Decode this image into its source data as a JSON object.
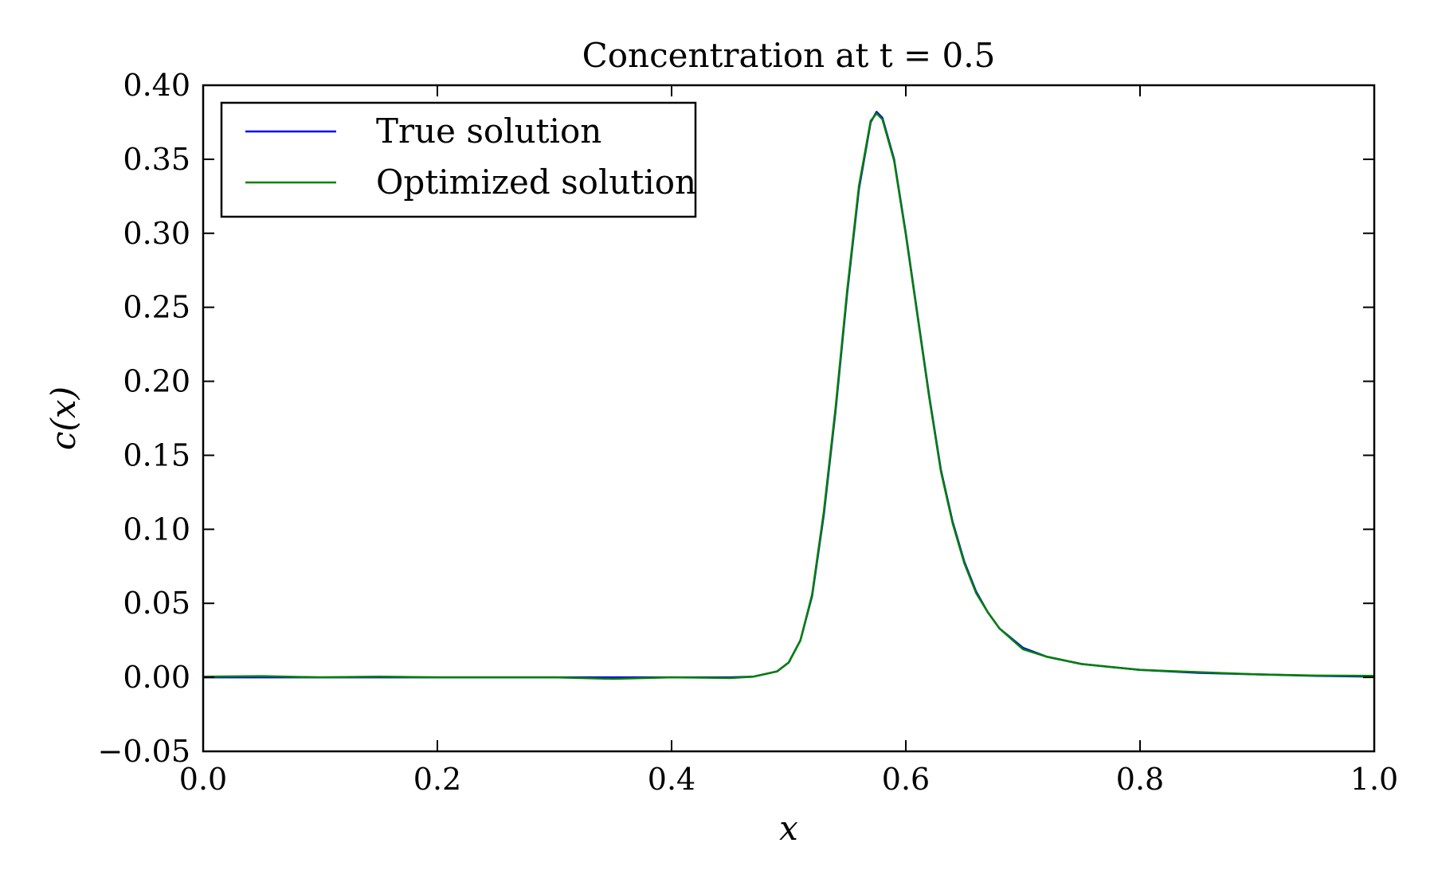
{
  "chart_data": {
    "type": "line",
    "title": "Concentration at t = 0.5",
    "xlabel": "x",
    "ylabel": "c(x)",
    "xlim": [
      0.0,
      1.0
    ],
    "ylim": [
      -0.05,
      0.4
    ],
    "x_ticks": [
      0.0,
      0.2,
      0.4,
      0.6,
      0.8,
      1.0
    ],
    "x_tick_labels": [
      "0.0",
      "0.2",
      "0.4",
      "0.6",
      "0.8",
      "1.0"
    ],
    "y_ticks": [
      -0.05,
      0.0,
      0.05,
      0.1,
      0.15,
      0.2,
      0.25,
      0.3,
      0.35,
      0.4
    ],
    "y_tick_labels": [
      "−0.05",
      "0.00",
      "0.05",
      "0.10",
      "0.15",
      "0.20",
      "0.25",
      "0.30",
      "0.35",
      "0.40"
    ],
    "grid": false,
    "legend": {
      "placement": "top-left"
    },
    "x": [
      0.0,
      0.05,
      0.1,
      0.15,
      0.2,
      0.25,
      0.3,
      0.35,
      0.4,
      0.45,
      0.47,
      0.49,
      0.5,
      0.51,
      0.52,
      0.53,
      0.54,
      0.55,
      0.56,
      0.57,
      0.575,
      0.58,
      0.59,
      0.6,
      0.61,
      0.62,
      0.63,
      0.64,
      0.65,
      0.66,
      0.67,
      0.68,
      0.7,
      0.72,
      0.75,
      0.8,
      0.85,
      0.9,
      0.95,
      1.0
    ],
    "series": [
      {
        "name": "True solution",
        "color": "#0000ff",
        "values": [
          0.0,
          0.0,
          0.0,
          0.0,
          0.0,
          0.0,
          0.0,
          0.0,
          0.0,
          0.0,
          0.0005,
          0.004,
          0.01,
          0.025,
          0.055,
          0.11,
          0.18,
          0.26,
          0.33,
          0.375,
          0.382,
          0.378,
          0.35,
          0.3,
          0.245,
          0.19,
          0.14,
          0.105,
          0.078,
          0.058,
          0.044,
          0.033,
          0.02,
          0.014,
          0.009,
          0.005,
          0.003,
          0.002,
          0.001,
          0.0005
        ]
      },
      {
        "name": "Optimized solution",
        "color": "#008000",
        "values": [
          0.0005,
          0.0008,
          0.0,
          0.0005,
          0.0,
          0.0,
          0.0,
          -0.001,
          0.0,
          -0.0005,
          0.0005,
          0.004,
          0.01,
          0.025,
          0.056,
          0.112,
          0.182,
          0.262,
          0.332,
          0.376,
          0.381,
          0.377,
          0.349,
          0.299,
          0.244,
          0.189,
          0.139,
          0.104,
          0.077,
          0.057,
          0.044,
          0.033,
          0.019,
          0.014,
          0.009,
          0.005,
          0.0035,
          0.002,
          0.0012,
          0.001
        ]
      }
    ]
  }
}
